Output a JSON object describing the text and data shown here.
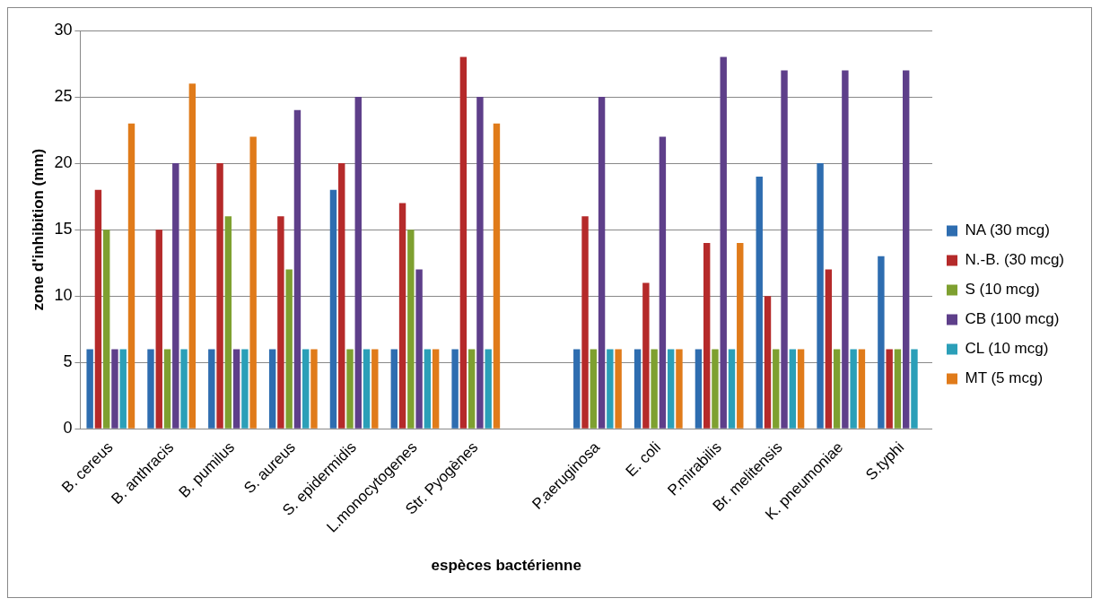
{
  "chart_data": {
    "type": "bar",
    "xlabel": "espèces bactérienne",
    "ylabel": "zone d'inhibition (mm)",
    "categories": [
      "B. cereus",
      "B. anthracis",
      "B. pumilus",
      "S. aureus",
      "S. epidermidis",
      "L.monocytogenes",
      "Str. Pyogènes",
      null,
      "P.aeruginosa",
      "E. coli",
      "P.mirabilis",
      "Br. melitensis",
      "K. pneumoniae",
      "S.typhi"
    ],
    "series": [
      {
        "name": "NA (30 mcg)",
        "color": "#2e6db0",
        "values": [
          6,
          6,
          6,
          6,
          18,
          6,
          6,
          null,
          6,
          6,
          6,
          19,
          20,
          13
        ]
      },
      {
        "name": "N.-B. (30 mcg)",
        "color": "#b52a2a",
        "values": [
          18,
          15,
          20,
          16,
          20,
          17,
          28,
          null,
          16,
          11,
          14,
          10,
          12,
          6
        ]
      },
      {
        "name": "S (10 mcg)",
        "color": "#7ea030",
        "values": [
          15,
          6,
          16,
          12,
          6,
          15,
          6,
          null,
          6,
          6,
          6,
          6,
          6,
          6
        ]
      },
      {
        "name": "CB (100 mcg)",
        "color": "#5e3f8a",
        "values": [
          6,
          20,
          6,
          24,
          25,
          12,
          25,
          null,
          25,
          22,
          28,
          27,
          27,
          27
        ]
      },
      {
        "name": "CL (10 mcg)",
        "color": "#2b9fb8",
        "values": [
          6,
          6,
          6,
          6,
          6,
          6,
          6,
          null,
          6,
          6,
          6,
          6,
          6,
          6
        ]
      },
      {
        "name": "MT (5 mcg)",
        "color": "#e07b1a",
        "values": [
          23,
          26,
          22,
          6,
          6,
          6,
          23,
          null,
          6,
          6,
          14,
          6,
          6,
          null
        ]
      }
    ],
    "ylim": [
      0,
      30
    ],
    "yticks": [
      0,
      5,
      10,
      15,
      20,
      25,
      30
    ],
    "grid": "y",
    "legend": "right"
  }
}
